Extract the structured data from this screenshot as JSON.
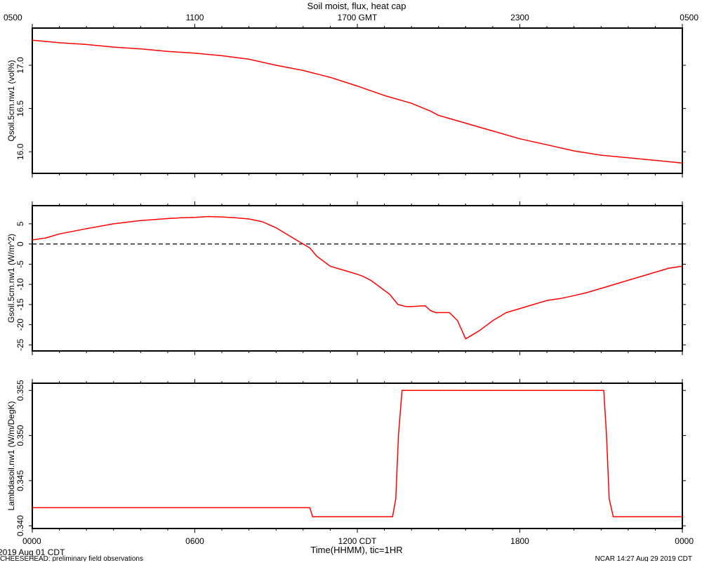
{
  "header": {
    "title": "Soil moist, flux, heat cap",
    "top_ticks": [
      "0500",
      "1100",
      "1700 GMT",
      "2300",
      "0500"
    ]
  },
  "footer": {
    "date_label": "2019 Aug 01 CDT",
    "source_label": "CHEESEHEAD: preliminary field observations",
    "credit_label": "NCAR 14:27 Aug 29 2019 CDT",
    "xlabel": "Time(HHMM), tic=1HR",
    "bottom_ticks": [
      "0000",
      "0600",
      "1200 CDT",
      "1800",
      "0000"
    ]
  },
  "chart_data": [
    {
      "type": "line",
      "ylabel": "Qsoil.5cm.nw1 (vol%)",
      "ylim": [
        15.75,
        17.43
      ],
      "yticks": [
        16.0,
        16.5,
        17.0
      ],
      "ytick_labels": [
        "16.0",
        "16.5",
        "17.0"
      ],
      "xlim": [
        0,
        24
      ],
      "grid": false,
      "series": [
        {
          "color": "#ff0000",
          "x": [
            0,
            1,
            2,
            3,
            4,
            5,
            6,
            7,
            8,
            9,
            10,
            11,
            12,
            13,
            14,
            14.7,
            15,
            16,
            17,
            18,
            19,
            20,
            21,
            22,
            23,
            24
          ],
          "values": [
            17.29,
            17.26,
            17.24,
            17.21,
            17.19,
            17.16,
            17.14,
            17.11,
            17.07,
            17.0,
            16.94,
            16.86,
            16.76,
            16.65,
            16.56,
            16.47,
            16.42,
            16.33,
            16.24,
            16.15,
            16.08,
            16.01,
            15.96,
            15.93,
            15.9,
            15.87
          ]
        }
      ]
    },
    {
      "type": "line",
      "ylabel": "Gsoil.5cm.nw1 (W/m^2)",
      "ylim": [
        -26.5,
        9.5
      ],
      "yticks": [
        -25,
        -20,
        -15,
        -10,
        -5,
        0,
        5
      ],
      "ytick_labels": [
        "-25",
        "-20",
        "-15",
        "-10",
        "-5",
        "0",
        "5"
      ],
      "xlim": [
        0,
        24
      ],
      "grid": false,
      "reference_line": 0,
      "series": [
        {
          "color": "#ff0000",
          "x": [
            0,
            0.5,
            1,
            2,
            3,
            4,
            5,
            5.5,
            6,
            6.5,
            7,
            7.5,
            8,
            8.5,
            9,
            9.5,
            10,
            10.25,
            10.5,
            11,
            11.5,
            12,
            12.2,
            12.5,
            12.8,
            13.2,
            13.5,
            13.8,
            14,
            14.5,
            14.7,
            14.9,
            15.1,
            15.4,
            15.7,
            16,
            16.5,
            17,
            17.5,
            18,
            18.5,
            19,
            19.5,
            20,
            20.5,
            21,
            21.5,
            22,
            22.5,
            23,
            23.5,
            24
          ],
          "values": [
            1.0,
            1.5,
            2.5,
            3.8,
            5.0,
            5.8,
            6.3,
            6.5,
            6.6,
            6.8,
            6.7,
            6.5,
            6.2,
            5.5,
            4.0,
            2.0,
            0.0,
            -1.0,
            -3.0,
            -5.5,
            -6.5,
            -7.5,
            -8.0,
            -9.0,
            -10.5,
            -12.5,
            -15.0,
            -15.5,
            -15.5,
            -15.3,
            -16.5,
            -17.0,
            -17.0,
            -17.0,
            -19.0,
            -23.5,
            -21.5,
            -19.0,
            -17.0,
            -16.0,
            -15.0,
            -14.0,
            -13.5,
            -12.8,
            -12.0,
            -11.0,
            -10.0,
            -9.0,
            -8.0,
            -7.0,
            -6.0,
            -5.5
          ]
        }
      ]
    },
    {
      "type": "line",
      "ylabel": "Lambdasoil.nw1 (W/m/DegK)",
      "ylim": [
        0.3397,
        0.3558
      ],
      "yticks": [
        0.34,
        0.345,
        0.35,
        0.355
      ],
      "ytick_labels": [
        "0.340",
        "0.345",
        "0.350",
        "0.355"
      ],
      "xlim": [
        0,
        24
      ],
      "grid": false,
      "series": [
        {
          "color": "#ff0000",
          "x": [
            0,
            10.25,
            10.35,
            13.3,
            13.42,
            13.52,
            13.65,
            13.75,
            21.1,
            21.2,
            21.3,
            21.45,
            24
          ],
          "values": [
            0.342,
            0.342,
            0.341,
            0.341,
            0.343,
            0.35,
            0.355,
            0.355,
            0.355,
            0.35,
            0.343,
            0.341,
            0.341
          ]
        }
      ]
    }
  ]
}
